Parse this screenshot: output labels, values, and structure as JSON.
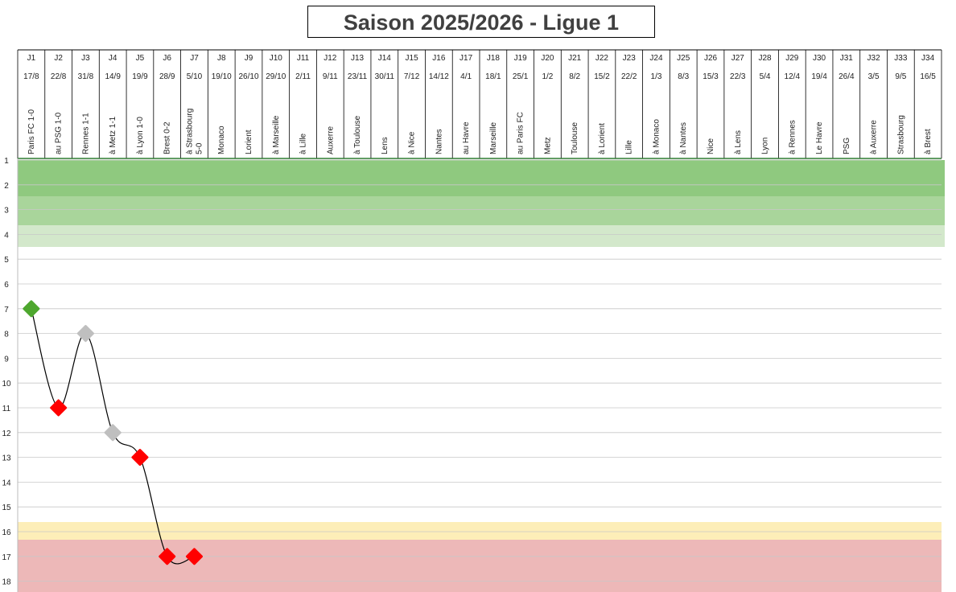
{
  "chart_data": {
    "type": "line",
    "title": "Saison 2025/2026 - Ligue 1",
    "rounds": [
      "J1",
      "J2",
      "J3",
      "J4",
      "J5",
      "J6",
      "J7",
      "J8",
      "J9",
      "J10",
      "J11",
      "J12",
      "J13",
      "J14",
      "J15",
      "J16",
      "J17",
      "J18",
      "J19",
      "J20",
      "J21",
      "J22",
      "J23",
      "J24",
      "J25",
      "J26",
      "J27",
      "J28",
      "J29",
      "J30",
      "J31",
      "J32",
      "J33",
      "J34"
    ],
    "dates": [
      "17/8",
      "22/8",
      "31/8",
      "14/9",
      "19/9",
      "28/9",
      "5/10",
      "19/10",
      "26/10",
      "29/10",
      "2/11",
      "9/11",
      "23/11",
      "30/11",
      "7/12",
      "14/12",
      "4/1",
      "18/1",
      "25/1",
      "1/2",
      "8/2",
      "15/2",
      "22/2",
      "1/3",
      "8/3",
      "15/3",
      "22/3",
      "5/4",
      "12/4",
      "19/4",
      "26/4",
      "3/5",
      "9/5",
      "16/5"
    ],
    "matches": [
      "Paris FC 1-0",
      "au PSG 1-0",
      "Rennes 1-1",
      "à Metz 1-1",
      "à Lyon 1-0",
      "Brest 0-2",
      "à Strasbourg 5-0",
      "Monaco",
      "Lorient",
      "à Marseille",
      "à Lille",
      "Auxerre",
      "à Toulouse",
      "Lens",
      "à Nice",
      "Nantes",
      "au Havre",
      "Marseille",
      "au Paris FC",
      "Metz",
      "Toulouse",
      "à Lorient",
      "Lille",
      "à Monaco",
      "à Nantes",
      "Nice",
      "à Lens",
      "Lyon",
      "à Rennes",
      "Le Havre",
      "PSG",
      "à Auxerre",
      "Strasbourg",
      "à Brest"
    ],
    "y_ticks": [
      1,
      2,
      3,
      4,
      5,
      6,
      7,
      8,
      9,
      10,
      11,
      12,
      13,
      14,
      15,
      16,
      17,
      18
    ],
    "ylim": [
      1,
      18
    ],
    "y_inverted": true,
    "positions": [
      7,
      11,
      8,
      12,
      13,
      17,
      17
    ],
    "point_results": [
      "win",
      "loss",
      "draw",
      "draw",
      "loss",
      "loss",
      "loss"
    ],
    "colors": {
      "win": "#4ea72e",
      "loss": "#ff0000",
      "draw": "#bfbfbf",
      "zone_dark_green": "#8fc97f",
      "zone_mid_green": "#a9d59b",
      "zone_light_green": "#d3e8cb",
      "zone_yellow": "#fdeeb8",
      "zone_red": "#edb8b8"
    }
  }
}
